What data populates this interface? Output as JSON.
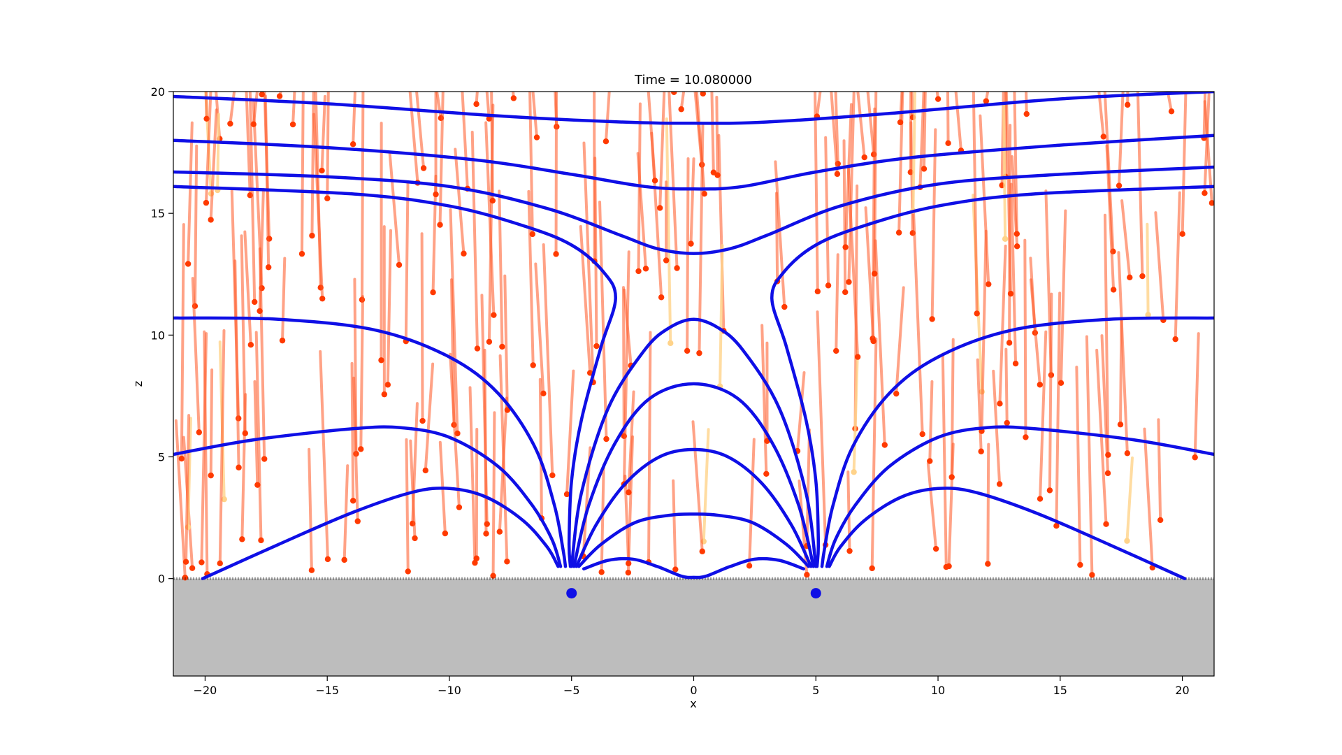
{
  "chart_data": {
    "type": "line",
    "title": "Time = 10.080000",
    "xlabel": "x",
    "ylabel": "z",
    "xlim": [
      -21.3,
      21.3
    ],
    "ylim": [
      -4,
      20
    ],
    "xticks": [
      -20,
      -15,
      -10,
      -5,
      0,
      5,
      10,
      15,
      20
    ],
    "xtick_labels": [
      "−20",
      "−15",
      "−10",
      "−5",
      "0",
      "5",
      "10",
      "15",
      "20"
    ],
    "yticks": [
      0,
      5,
      10,
      15,
      20
    ],
    "ytick_labels": [
      "0",
      "5",
      "10",
      "15",
      "20"
    ],
    "grid": false,
    "legend": "none",
    "colors": {
      "field_line": "#0f0fe6",
      "particle_trail": "#ff5522",
      "particle_head": "#ff3a00",
      "faint_trail": "#ffd38a",
      "ground": "#bdbdbd",
      "source_marker": "#0f0fe6"
    },
    "ground_region": {
      "from_z": -4,
      "to_z": 0
    },
    "sources": [
      {
        "x": -5,
        "z": -0.6
      },
      {
        "x": 5,
        "z": -0.6
      }
    ],
    "field_lines": [
      {
        "points": [
          [
            -21.3,
            19.8
          ],
          [
            -15,
            19.5
          ],
          [
            -8,
            19.0
          ],
          [
            -3,
            18.75
          ],
          [
            0,
            18.7
          ],
          [
            3,
            18.75
          ],
          [
            8,
            19.1
          ],
          [
            15,
            19.7
          ],
          [
            21.3,
            20.0
          ]
        ]
      },
      {
        "points": [
          [
            -21.3,
            18.0
          ],
          [
            -15,
            17.7
          ],
          [
            -9,
            17.2
          ],
          [
            -5,
            16.6
          ],
          [
            -2,
            16.1
          ],
          [
            0,
            16.0
          ],
          [
            2,
            16.1
          ],
          [
            5,
            16.7
          ],
          [
            9,
            17.3
          ],
          [
            15,
            17.8
          ],
          [
            21.3,
            18.2
          ]
        ]
      },
      {
        "points": [
          [
            -21.3,
            16.7
          ],
          [
            -15,
            16.5
          ],
          [
            -10,
            16.1
          ],
          [
            -6,
            15.2
          ],
          [
            -3,
            14.1
          ],
          [
            -1.5,
            13.55
          ],
          [
            0,
            13.35
          ],
          [
            1.5,
            13.55
          ],
          [
            3,
            14.1
          ],
          [
            6,
            15.3
          ],
          [
            10,
            16.2
          ],
          [
            15,
            16.6
          ],
          [
            21.3,
            16.9
          ]
        ]
      },
      {
        "points": [
          [
            -21.3,
            16.1
          ],
          [
            -14,
            15.8
          ],
          [
            -10,
            15.3
          ],
          [
            -7,
            14.5
          ],
          [
            -5,
            13.7
          ],
          [
            -3.7,
            12.6
          ],
          [
            -3.2,
            11.5
          ],
          [
            -3.8,
            9.5
          ],
          [
            -4.6,
            6.5
          ],
          [
            -5.0,
            4.0
          ],
          [
            -5.1,
            1.5
          ],
          [
            -5.05,
            0.5
          ]
        ]
      },
      {
        "points": [
          [
            21.3,
            16.1
          ],
          [
            14,
            15.8
          ],
          [
            10,
            15.3
          ],
          [
            7,
            14.5
          ],
          [
            5,
            13.7
          ],
          [
            3.7,
            12.6
          ],
          [
            3.2,
            11.5
          ],
          [
            3.8,
            9.5
          ],
          [
            4.6,
            6.5
          ],
          [
            5.0,
            4.0
          ],
          [
            5.1,
            1.5
          ],
          [
            5.05,
            0.5
          ]
        ]
      },
      {
        "points": [
          [
            -21.3,
            10.7
          ],
          [
            -17,
            10.65
          ],
          [
            -13,
            10.2
          ],
          [
            -10,
            9.1
          ],
          [
            -8,
            7.6
          ],
          [
            -6.5,
            5.4
          ],
          [
            -5.7,
            3.0
          ],
          [
            -5.35,
            1.2
          ],
          [
            -5.25,
            0.5
          ]
        ]
      },
      {
        "points": [
          [
            21.3,
            10.7
          ],
          [
            17,
            10.65
          ],
          [
            13,
            10.2
          ],
          [
            10,
            9.1
          ],
          [
            8,
            7.6
          ],
          [
            6.5,
            5.4
          ],
          [
            5.7,
            3.0
          ],
          [
            5.35,
            1.2
          ],
          [
            5.25,
            0.5
          ]
        ]
      },
      {
        "points": [
          [
            -21.3,
            5.1
          ],
          [
            -18,
            5.7
          ],
          [
            -14,
            6.15
          ],
          [
            -12,
            6.2
          ],
          [
            -10,
            5.8
          ],
          [
            -8,
            4.6
          ],
          [
            -6.6,
            3.0
          ],
          [
            -5.8,
            1.6
          ],
          [
            -5.45,
            0.5
          ]
        ]
      },
      {
        "points": [
          [
            21.3,
            5.1
          ],
          [
            18,
            5.7
          ],
          [
            14,
            6.15
          ],
          [
            12,
            6.2
          ],
          [
            10,
            5.8
          ],
          [
            8,
            4.6
          ],
          [
            6.6,
            3.0
          ],
          [
            5.8,
            1.6
          ],
          [
            5.45,
            0.5
          ]
        ]
      },
      {
        "points": [
          [
            -20.1,
            0.0
          ],
          [
            -17,
            1.4
          ],
          [
            -14,
            2.7
          ],
          [
            -11.5,
            3.55
          ],
          [
            -10,
            3.7
          ],
          [
            -8.5,
            3.35
          ],
          [
            -7,
            2.4
          ],
          [
            -6,
            1.3
          ],
          [
            -5.55,
            0.5
          ]
        ]
      },
      {
        "points": [
          [
            20.1,
            0.0
          ],
          [
            17,
            1.4
          ],
          [
            14,
            2.7
          ],
          [
            11.5,
            3.55
          ],
          [
            10,
            3.7
          ],
          [
            8.5,
            3.35
          ],
          [
            7,
            2.4
          ],
          [
            6,
            1.3
          ],
          [
            5.55,
            0.5
          ]
        ]
      },
      {
        "points": [
          [
            -5.0,
            0.5
          ],
          [
            -4.6,
            3.5
          ],
          [
            -3.5,
            7.0
          ],
          [
            -2,
            9.4
          ],
          [
            -1,
            10.3
          ],
          [
            0,
            10.65
          ],
          [
            1,
            10.3
          ],
          [
            2,
            9.4
          ],
          [
            3.5,
            7.0
          ],
          [
            4.6,
            3.5
          ],
          [
            5.0,
            0.5
          ]
        ]
      },
      {
        "points": [
          [
            -4.9,
            0.5
          ],
          [
            -4.3,
            3.0
          ],
          [
            -3.2,
            5.6
          ],
          [
            -1.8,
            7.4
          ],
          [
            0,
            8.0
          ],
          [
            1.8,
            7.4
          ],
          [
            3.2,
            5.6
          ],
          [
            4.3,
            3.0
          ],
          [
            4.9,
            0.5
          ]
        ]
      },
      {
        "points": [
          [
            -4.8,
            0.5
          ],
          [
            -4.0,
            2.2
          ],
          [
            -2.8,
            3.9
          ],
          [
            -1.4,
            5.0
          ],
          [
            0,
            5.3
          ],
          [
            1.4,
            5.0
          ],
          [
            2.8,
            3.9
          ],
          [
            4.0,
            2.2
          ],
          [
            4.8,
            0.5
          ]
        ]
      },
      {
        "points": [
          [
            -4.7,
            0.5
          ],
          [
            -3.8,
            1.4
          ],
          [
            -2.4,
            2.3
          ],
          [
            -1,
            2.6
          ],
          [
            0,
            2.65
          ],
          [
            1,
            2.6
          ],
          [
            2.4,
            2.3
          ],
          [
            3.8,
            1.4
          ],
          [
            4.7,
            0.5
          ]
        ]
      },
      {
        "points": [
          [
            -4.5,
            0.4
          ],
          [
            -3.5,
            0.75
          ],
          [
            -2.5,
            0.8
          ],
          [
            -1.5,
            0.5
          ],
          [
            -0.5,
            0.1
          ],
          [
            0,
            0.05
          ],
          [
            0.5,
            0.1
          ],
          [
            1.5,
            0.5
          ],
          [
            2.5,
            0.8
          ],
          [
            3.5,
            0.75
          ],
          [
            4.5,
            0.4
          ]
        ]
      }
    ]
  }
}
